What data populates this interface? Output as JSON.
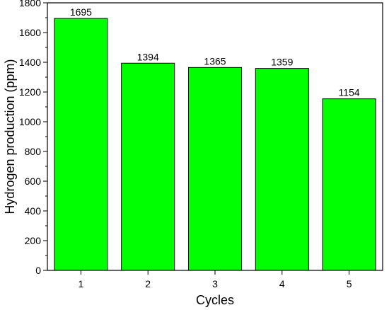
{
  "chart_data": {
    "type": "bar",
    "title": "",
    "xlabel": "Cycles",
    "ylabel": "Hydrogen production (ppm)",
    "categories": [
      "1",
      "2",
      "3",
      "4",
      "5"
    ],
    "values": [
      1695,
      1394,
      1365,
      1359,
      1154
    ],
    "data_labels": [
      "1695",
      "1394",
      "1365",
      "1359",
      "1154"
    ],
    "ylim": [
      0,
      1800
    ],
    "yticks": [
      0,
      200,
      400,
      600,
      800,
      1000,
      1200,
      1400,
      1600,
      1800
    ],
    "ytick_labels": [
      "0",
      "200",
      "400",
      "600",
      "800",
      "1000",
      "1200",
      "1400",
      "1600",
      "1800"
    ],
    "grid": false,
    "legend": "none",
    "bar_color": "#00ff00"
  }
}
